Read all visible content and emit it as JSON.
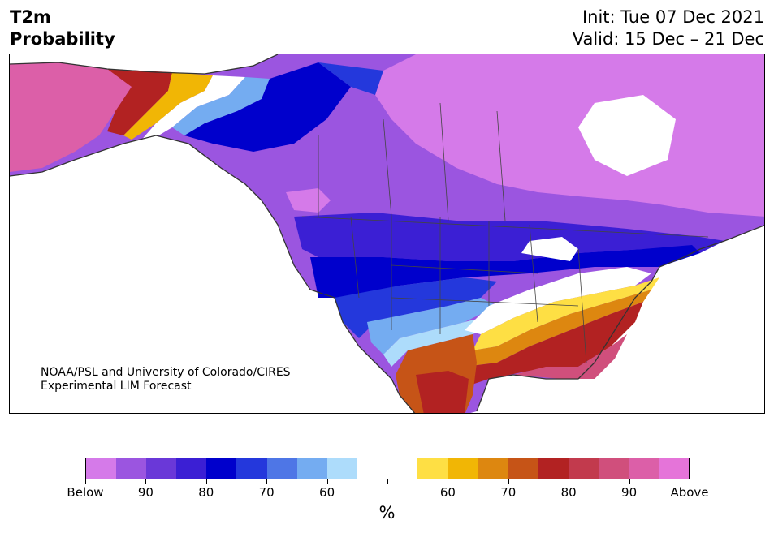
{
  "header": {
    "title_line1": "T2m",
    "title_line2": "Probability",
    "init": "Init: Tue 07 Dec 2021",
    "valid": "Valid: 15 Dec – 21 Dec"
  },
  "credit": {
    "line1": "NOAA/PSL and University of Colorado/CIRES",
    "line2": "Experimental LIM Forecast"
  },
  "colorbar": {
    "colors": [
      "#d57ae9",
      "#9b55e0",
      "#6a38d8",
      "#3b1fd4",
      "#0000cc",
      "#2438dc",
      "#4e76e6",
      "#74acf1",
      "#addcfb",
      "#ffffff",
      "#ffffff",
      "#fedf44",
      "#f1b605",
      "#dd8710",
      "#c65417",
      "#b22222",
      "#c23a4d",
      "#d04f7c",
      "#dc5fa8",
      "#e574d9"
    ],
    "labels": [
      "Below",
      "90",
      "80",
      "70",
      "60",
      "60",
      "70",
      "80",
      "90",
      "Above"
    ],
    "unit": "%"
  },
  "map": {
    "region": "North America",
    "palette": {
      "below_extreme": "#d57ae9",
      "below_90": "#9b55e0",
      "below_80": "#6a38d8",
      "below_75": "#3b1fd4",
      "below_70": "#0000cc",
      "below_65": "#2438dc",
      "below_60": "#4e76e6",
      "below_55": "#74acf1",
      "below_50": "#addcfb",
      "neutral": "#ffffff",
      "above_50": "#fedf44",
      "above_55": "#f1b605",
      "above_60": "#dd8710",
      "above_65": "#c65417",
      "above_70": "#b22222",
      "above_75": "#c23a4d",
      "above_80": "#d04f7c",
      "above_90": "#dc5fa8",
      "above_extreme": "#e574d9"
    }
  }
}
